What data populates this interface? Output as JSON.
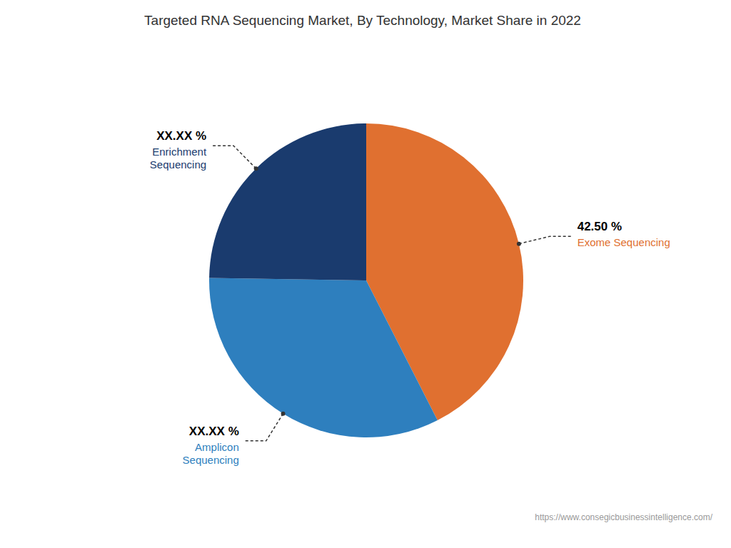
{
  "chart_data": {
    "type": "pie",
    "title": "Targeted RNA Sequencing Market, By Technology, Market Share in 2022",
    "categories": [
      "Exome Sequencing",
      "Amplicon\nSequencing",
      "Enrichment\nSequencing"
    ],
    "values": [
      42.5,
      32.75,
      24.75
    ],
    "value_labels": [
      "42.50 %",
      "XX.XX %",
      "XX.XX %"
    ],
    "colors": [
      "#E07030",
      "#2E7FBE",
      "#1A3B6E"
    ],
    "data_labels": true,
    "annotations": [
      "https://www.consegicbusinessintelligence.com/"
    ]
  }
}
